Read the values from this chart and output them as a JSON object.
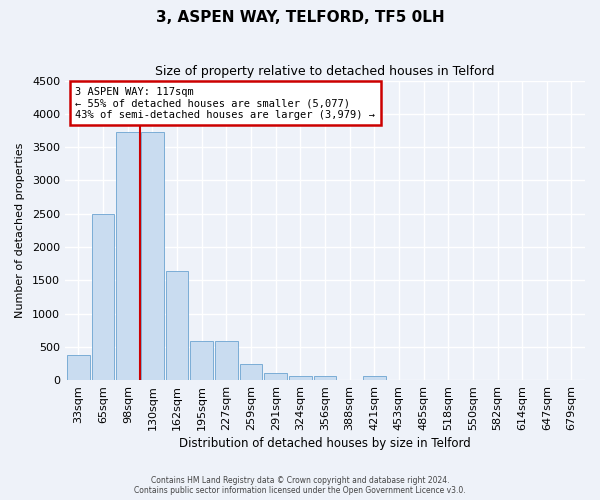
{
  "title": "3, ASPEN WAY, TELFORD, TF5 0LH",
  "subtitle": "Size of property relative to detached houses in Telford",
  "xlabel": "Distribution of detached houses by size in Telford",
  "ylabel": "Number of detached properties",
  "bar_labels": [
    "33sqm",
    "65sqm",
    "98sqm",
    "130sqm",
    "162sqm",
    "195sqm",
    "227sqm",
    "259sqm",
    "291sqm",
    "324sqm",
    "356sqm",
    "388sqm",
    "421sqm",
    "453sqm",
    "485sqm",
    "518sqm",
    "550sqm",
    "582sqm",
    "614sqm",
    "647sqm",
    "679sqm"
  ],
  "bar_values": [
    380,
    2500,
    3730,
    3730,
    1640,
    590,
    590,
    240,
    110,
    65,
    65,
    0,
    55,
    0,
    0,
    0,
    0,
    0,
    0,
    0,
    0
  ],
  "bar_color": "#c9dcf0",
  "bar_edge_color": "#7badd6",
  "vline_x_index": 2.5,
  "vline_color": "#cc0000",
  "annotation_text": "3 ASPEN WAY: 117sqm\n← 55% of detached houses are smaller (5,077)\n43% of semi-detached houses are larger (3,979) →",
  "annotation_box_edgecolor": "#cc0000",
  "ylim": [
    0,
    4500
  ],
  "yticks": [
    0,
    500,
    1000,
    1500,
    2000,
    2500,
    3000,
    3500,
    4000,
    4500
  ],
  "footer_line1": "Contains HM Land Registry data © Crown copyright and database right 2024.",
  "footer_line2": "Contains public sector information licensed under the Open Government Licence v3.0.",
  "bg_color": "#eef2f9",
  "plot_bg_color": "#eef2f9",
  "title_fontsize": 11,
  "subtitle_fontsize": 9
}
